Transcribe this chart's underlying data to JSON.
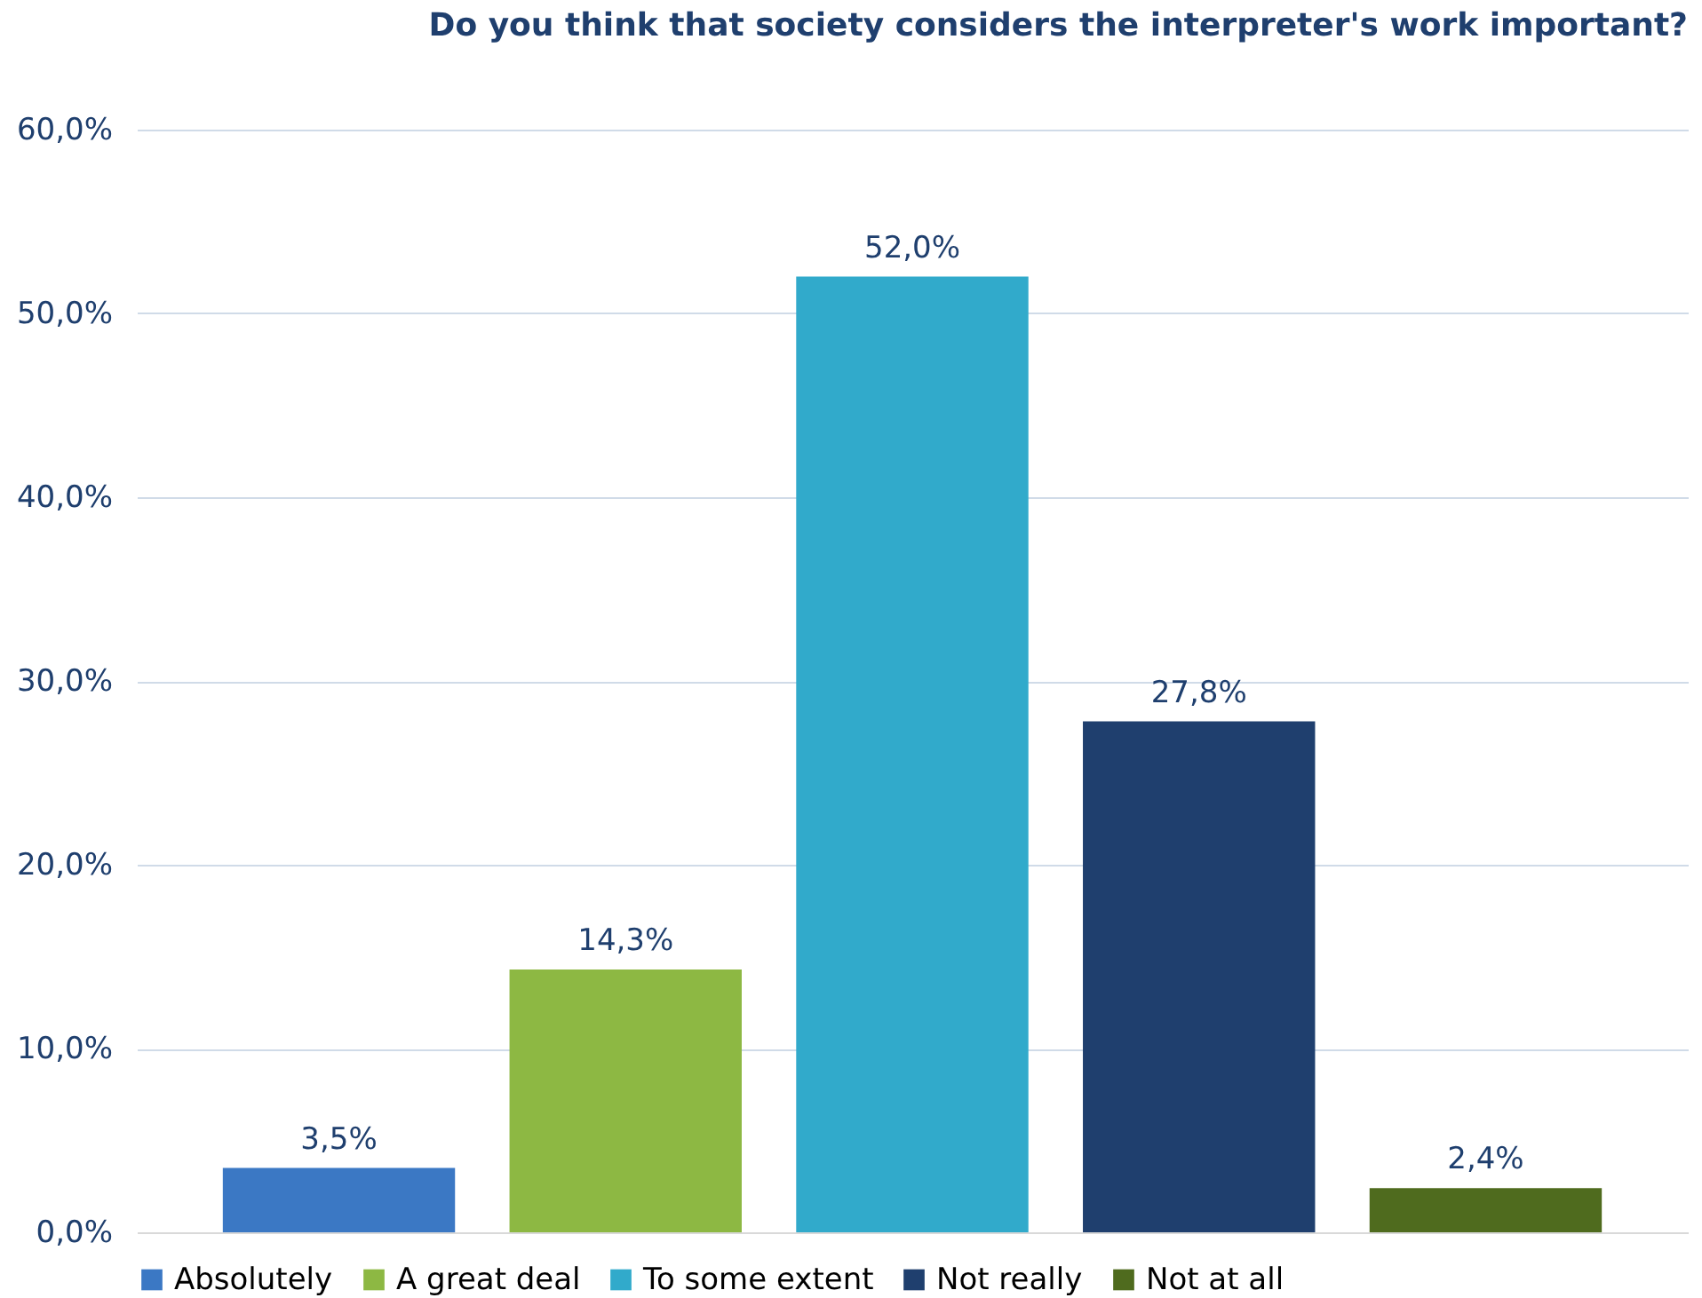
{
  "chart_data": {
    "type": "bar",
    "title": "Do you think that society considers the interpreter's work important?",
    "categories": [
      null,
      null,
      null,
      null,
      null
    ],
    "series": [
      {
        "name": "Absolutely",
        "color": "#3b78c4",
        "values": [
          3.5,
          null,
          null,
          null,
          null
        ],
        "value_labels": [
          "3,5%",
          null,
          null,
          null,
          null
        ]
      },
      {
        "name": "A great deal",
        "color": "#8db843",
        "values": [
          null,
          14.3,
          null,
          null,
          null
        ],
        "value_labels": [
          null,
          "14,3%",
          null,
          null,
          null
        ]
      },
      {
        "name": "To some extent",
        "color": "#31aacb",
        "values": [
          null,
          null,
          52.0,
          null,
          null
        ],
        "value_labels": [
          null,
          null,
          "52,0%",
          null,
          null
        ]
      },
      {
        "name": "Not really",
        "color": "#1f3f6e",
        "values": [
          null,
          null,
          null,
          27.8,
          null
        ],
        "value_labels": [
          null,
          null,
          null,
          "27,8%",
          null
        ]
      },
      {
        "name": "Not at all",
        "color": "#4f6b1e",
        "values": [
          null,
          null,
          null,
          null,
          2.4
        ],
        "value_labels": [
          null,
          null,
          null,
          null,
          "2,4%"
        ]
      }
    ],
    "ylim": [
      0,
      60
    ],
    "yticks": [
      {
        "value": 0,
        "label": "0,0%"
      },
      {
        "value": 10,
        "label": "10,0%"
      },
      {
        "value": 20,
        "label": "20,0%"
      },
      {
        "value": 30,
        "label": "30,0%"
      },
      {
        "value": 40,
        "label": "40,0%"
      },
      {
        "value": 50,
        "label": "50,0%"
      },
      {
        "value": 60,
        "label": "60,0%"
      }
    ],
    "grid": "y",
    "legend": "bottom"
  }
}
